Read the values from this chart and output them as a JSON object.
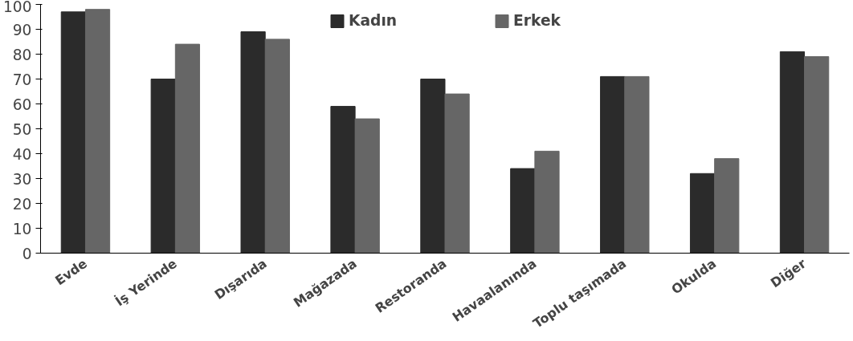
{
  "chart_data": {
    "type": "bar",
    "categories": [
      "Evde",
      "İş Yerinde",
      "Dışarıda",
      "Mağazada",
      "Restoranda",
      "Havaalanında",
      "Toplu taşımada",
      "Okulda",
      "Diğer"
    ],
    "series": [
      {
        "name": "Kadın",
        "color": "#2b2b2b",
        "values": [
          97,
          70,
          89,
          59,
          70,
          34,
          71,
          32,
          81
        ]
      },
      {
        "name": "Erkek",
        "color": "#666666",
        "values": [
          98,
          84,
          86,
          54,
          64,
          41,
          71,
          38,
          79
        ]
      }
    ],
    "ylim": [
      0,
      100
    ],
    "yticks": [
      0,
      10,
      20,
      30,
      40,
      50,
      60,
      70,
      80,
      90,
      100
    ],
    "grid": false,
    "legend": "top"
  }
}
